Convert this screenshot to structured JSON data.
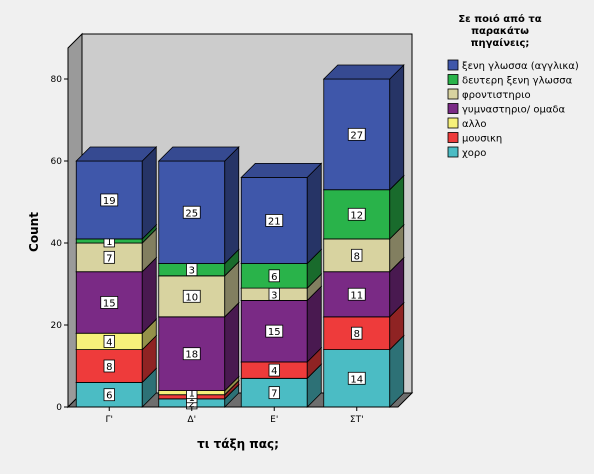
{
  "chart_data": {
    "type": "bar",
    "stacked": true,
    "three_d": true,
    "categories": [
      "Γ'",
      "Δ'",
      "Ε'",
      "ΣΤ'"
    ],
    "xlabel": "τι τάξη πας;",
    "ylabel": "Count",
    "ylim": [
      0,
      80
    ],
    "yticks": [
      0,
      20,
      40,
      60,
      80
    ],
    "legend": {
      "title": [
        "Σε ποιό από τα",
        "παρακάτω",
        "πηγαίνεις;"
      ],
      "placement": "right"
    },
    "series": [
      {
        "name": "χορο",
        "color": "#4bbcc4",
        "values": [
          6,
          2,
          7,
          14
        ]
      },
      {
        "name": "μουσικη",
        "color": "#ee3b3b",
        "values": [
          8,
          1,
          4,
          8
        ]
      },
      {
        "name": "αλλο",
        "color": "#f6f17a",
        "values": [
          4,
          1,
          0,
          0
        ]
      },
      {
        "name": "γυμναστηριο/ ομαδα",
        "color": "#7a2a85",
        "values": [
          15,
          18,
          15,
          11
        ]
      },
      {
        "name": "φροντιστηριο",
        "color": "#d8d3a0",
        "values": [
          7,
          10,
          3,
          8
        ]
      },
      {
        "name": "δευτερη ξενη γλωσσα",
        "color": "#29b34a",
        "values": [
          1,
          3,
          6,
          12
        ]
      },
      {
        "name": "ξενη γλωσσα (αγγλικα)",
        "color": "#3f57aa",
        "values": [
          19,
          25,
          21,
          27
        ]
      }
    ],
    "legend_order": [
      "ξενη γλωσσα (αγγλικα)",
      "δευτερη ξενη γλωσσα",
      "φροντιστηριο",
      "γυμναστηριο/ ομαδα",
      "αλλο",
      "μουσικη",
      "χορο"
    ],
    "grid": false
  }
}
